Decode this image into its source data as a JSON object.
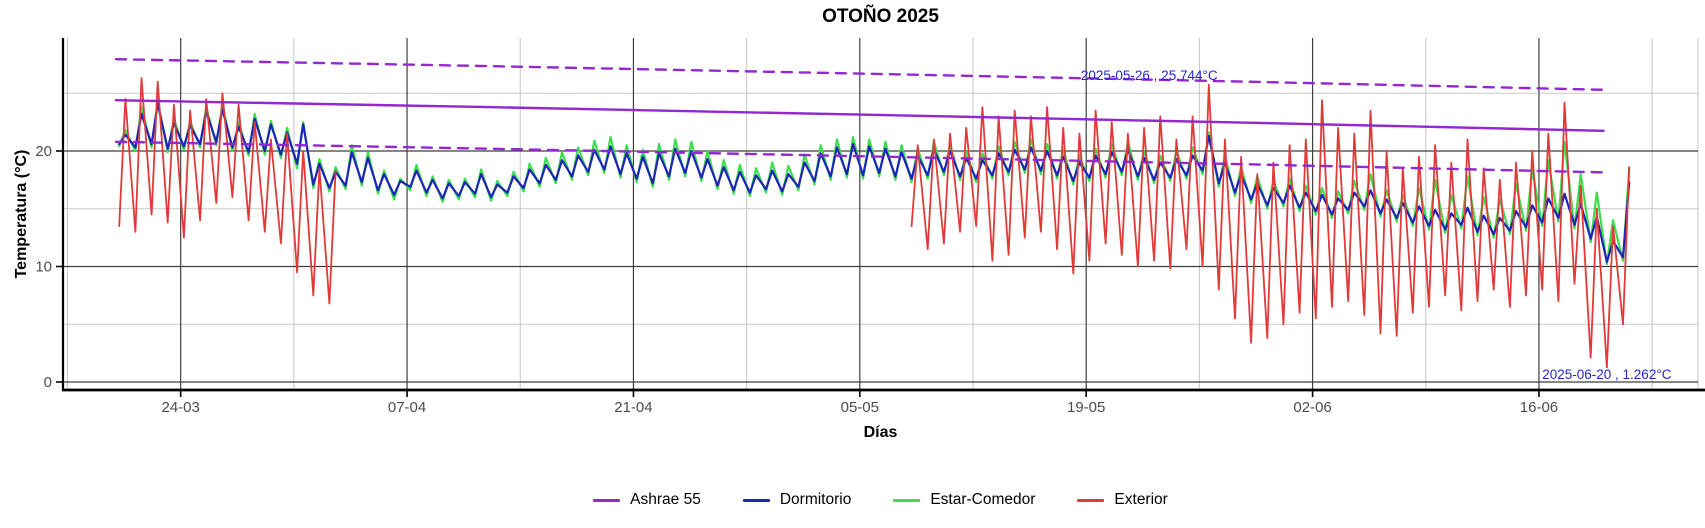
{
  "chart_data": {
    "type": "line",
    "title": "OTOÑO 2025",
    "xlabel": "Días",
    "ylabel": "Temperatura (°C)",
    "x_start_date": "2025-03-20",
    "x_tick_labels": [
      {
        "day": 4,
        "label": "24-03"
      },
      {
        "day": 18,
        "label": "07-04"
      },
      {
        "day": 32,
        "label": "21-04"
      },
      {
        "day": 46,
        "label": "05-05"
      },
      {
        "day": 60,
        "label": "19-05"
      },
      {
        "day": 74,
        "label": "02-06"
      },
      {
        "day": 88,
        "label": "16-06"
      }
    ],
    "x_minor_days": [
      -3,
      11,
      25,
      39,
      53,
      67,
      81,
      95
    ],
    "y_ticks": [
      {
        "value": 0,
        "label": "0"
      },
      {
        "value": 10,
        "label": "10"
      },
      {
        "value": 20,
        "label": "20"
      }
    ],
    "y_minor": [
      5,
      15,
      25
    ],
    "ylim": [
      -0.7,
      29.8
    ],
    "grid": true,
    "legend_position": "bottom",
    "colors": {
      "ashrae": "#9327d0",
      "dormitorio": "#1f23b8",
      "estar_comedor": "#3bdf4e",
      "exterior": "#e23939",
      "annotation": "#2626cc",
      "grid_major": "#3f3f3f",
      "grid_minor": "#c9c9c9",
      "axis": "#000000",
      "tick_text": "#4d4d4d"
    },
    "series": [
      {
        "key": "estar-comedor",
        "name": "Estar-Comedor",
        "color_ref": "estar_comedor",
        "line_style": "solid",
        "width": 2.2,
        "data_kind": "daily_min_max",
        "daily_min_max": [
          [
            20.4,
            21.8
          ],
          [
            20.0,
            23.8
          ],
          [
            20.3,
            24.3
          ],
          [
            19.9,
            22.8
          ],
          [
            20.1,
            22.6
          ],
          [
            20.3,
            23.8
          ],
          [
            20.5,
            24.0
          ],
          [
            20.0,
            22.5
          ],
          [
            19.6,
            23.2
          ],
          [
            19.7,
            22.6
          ],
          [
            19.4,
            22.0
          ],
          [
            18.5,
            22.5
          ],
          [
            16.8,
            19.3
          ],
          [
            16.5,
            18.6
          ],
          [
            16.7,
            20.5
          ],
          [
            17.0,
            19.9
          ],
          [
            16.3,
            18.3
          ],
          [
            15.8,
            17.6
          ],
          [
            16.6,
            18.8
          ],
          [
            16.1,
            17.8
          ],
          [
            15.6,
            17.5
          ],
          [
            15.8,
            17.6
          ],
          [
            16.0,
            18.4
          ],
          [
            15.7,
            17.4
          ],
          [
            16.1,
            18.2
          ],
          [
            16.5,
            18.9
          ],
          [
            16.9,
            19.4
          ],
          [
            17.2,
            19.9
          ],
          [
            17.5,
            20.3
          ],
          [
            17.9,
            20.9
          ],
          [
            18.1,
            21.2
          ],
          [
            17.7,
            20.5
          ],
          [
            17.3,
            20.1
          ],
          [
            16.9,
            20.6
          ],
          [
            17.5,
            21.0
          ],
          [
            17.8,
            20.8
          ],
          [
            17.4,
            20.0
          ],
          [
            16.7,
            19.2
          ],
          [
            16.3,
            18.8
          ],
          [
            16.1,
            18.5
          ],
          [
            16.4,
            19.0
          ],
          [
            16.2,
            18.7
          ],
          [
            16.6,
            19.7
          ],
          [
            17.1,
            20.5
          ],
          [
            17.5,
            21.0
          ],
          [
            17.7,
            21.2
          ],
          [
            17.6,
            21.0
          ],
          [
            17.8,
            20.8
          ],
          [
            17.5,
            20.5
          ],
          [
            17.3,
            20.2
          ],
          [
            17.6,
            20.8
          ],
          [
            17.9,
            20.6
          ],
          [
            17.5,
            20.0
          ],
          [
            17.3,
            19.8
          ],
          [
            17.6,
            20.4
          ],
          [
            17.9,
            20.8
          ],
          [
            18.1,
            21.0
          ],
          [
            18.0,
            20.6
          ],
          [
            17.6,
            20.1
          ],
          [
            17.1,
            19.6
          ],
          [
            17.4,
            20.2
          ],
          [
            17.7,
            20.6
          ],
          [
            17.9,
            20.8
          ],
          [
            17.5,
            20.0
          ],
          [
            17.2,
            19.6
          ],
          [
            17.4,
            20.0
          ],
          [
            17.6,
            20.3
          ],
          [
            18.0,
            21.6
          ],
          [
            16.9,
            19.6
          ],
          [
            16.1,
            18.6
          ],
          [
            15.5,
            17.8
          ],
          [
            15.0,
            17.4
          ],
          [
            15.2,
            17.6
          ],
          [
            14.8,
            17.0
          ],
          [
            14.5,
            16.8
          ],
          [
            14.2,
            16.5
          ],
          [
            14.6,
            17.4
          ],
          [
            14.9,
            18.0
          ],
          [
            14.3,
            16.6
          ],
          [
            13.9,
            16.2
          ],
          [
            13.5,
            16.8
          ],
          [
            13.2,
            17.5
          ],
          [
            12.9,
            16.2
          ],
          [
            13.3,
            17.8
          ],
          [
            12.7,
            16.0
          ],
          [
            12.5,
            15.8
          ],
          [
            12.8,
            17.2
          ],
          [
            13.1,
            18.4
          ],
          [
            13.5,
            19.2
          ],
          [
            13.9,
            20.8
          ],
          [
            13.3,
            18.0
          ],
          [
            12.1,
            16.4
          ],
          [
            10.2,
            14.0
          ],
          [
            10.5,
            18.5
          ]
        ]
      },
      {
        "key": "dormitorio",
        "name": "Dormitorio",
        "color_ref": "dormitorio",
        "line_style": "solid",
        "width": 2.2,
        "data_kind": "daily_min_max",
        "daily_min_max": [
          [
            20.6,
            21.4
          ],
          [
            20.3,
            23.2
          ],
          [
            20.6,
            24.1
          ],
          [
            20.2,
            22.4
          ],
          [
            20.4,
            22.2
          ],
          [
            20.6,
            23.4
          ],
          [
            20.8,
            23.6
          ],
          [
            20.3,
            22.1
          ],
          [
            19.9,
            22.8
          ],
          [
            20.0,
            22.3
          ],
          [
            19.7,
            21.6
          ],
          [
            18.9,
            22.3
          ],
          [
            17.1,
            18.9
          ],
          [
            16.8,
            18.2
          ],
          [
            17.0,
            19.9
          ],
          [
            17.3,
            19.4
          ],
          [
            16.6,
            18.0
          ],
          [
            16.2,
            17.4
          ],
          [
            16.9,
            18.3
          ],
          [
            16.4,
            17.5
          ],
          [
            15.9,
            17.2
          ],
          [
            16.1,
            17.3
          ],
          [
            16.3,
            18.0
          ],
          [
            16.0,
            17.1
          ],
          [
            16.4,
            17.8
          ],
          [
            16.8,
            18.4
          ],
          [
            17.2,
            18.8
          ],
          [
            17.5,
            19.2
          ],
          [
            17.8,
            19.6
          ],
          [
            18.2,
            20.1
          ],
          [
            18.4,
            20.4
          ],
          [
            18.0,
            19.8
          ],
          [
            17.6,
            19.5
          ],
          [
            17.2,
            19.8
          ],
          [
            17.8,
            20.2
          ],
          [
            18.1,
            20.0
          ],
          [
            17.7,
            19.3
          ],
          [
            17.0,
            18.6
          ],
          [
            16.6,
            18.2
          ],
          [
            16.4,
            17.9
          ],
          [
            16.7,
            18.3
          ],
          [
            16.5,
            18.0
          ],
          [
            16.9,
            19.0
          ],
          [
            17.4,
            19.8
          ],
          [
            17.8,
            20.3
          ],
          [
            18.0,
            20.6
          ],
          [
            17.9,
            20.4
          ],
          [
            18.1,
            20.2
          ],
          [
            17.8,
            19.9
          ],
          [
            17.6,
            19.6
          ],
          [
            17.9,
            20.1
          ],
          [
            18.2,
            20.0
          ],
          [
            17.8,
            19.4
          ],
          [
            17.6,
            19.2
          ],
          [
            17.9,
            19.8
          ],
          [
            18.2,
            20.1
          ],
          [
            18.4,
            20.3
          ],
          [
            18.3,
            20.0
          ],
          [
            17.9,
            19.5
          ],
          [
            17.4,
            19.0
          ],
          [
            17.7,
            19.6
          ],
          [
            18.0,
            19.9
          ],
          [
            18.2,
            20.1
          ],
          [
            17.8,
            19.4
          ],
          [
            17.5,
            19.0
          ],
          [
            17.7,
            19.3
          ],
          [
            17.9,
            19.6
          ],
          [
            18.3,
            21.3
          ],
          [
            17.2,
            19.0
          ],
          [
            16.4,
            18.0
          ],
          [
            15.8,
            17.2
          ],
          [
            15.3,
            16.8
          ],
          [
            15.5,
            17.0
          ],
          [
            15.1,
            16.4
          ],
          [
            14.8,
            16.2
          ],
          [
            14.5,
            15.9
          ],
          [
            14.9,
            16.4
          ],
          [
            15.2,
            16.6
          ],
          [
            14.6,
            15.8
          ],
          [
            14.2,
            15.5
          ],
          [
            13.8,
            15.2
          ],
          [
            13.5,
            14.9
          ],
          [
            13.2,
            14.6
          ],
          [
            13.6,
            15.1
          ],
          [
            13.0,
            14.4
          ],
          [
            12.8,
            14.2
          ],
          [
            13.1,
            14.8
          ],
          [
            13.4,
            15.3
          ],
          [
            13.8,
            15.9
          ],
          [
            14.2,
            16.3
          ],
          [
            13.6,
            15.4
          ],
          [
            12.4,
            14.3
          ],
          [
            10.4,
            12.2
          ],
          [
            10.8,
            17.3
          ]
        ]
      },
      {
        "key": "exterior",
        "name": "Exterior",
        "color_ref": "exterior",
        "line_style": "solid",
        "width": 1.8,
        "data_kind": "daily_min_max",
        "daily_min_max": [
          [
            13.5,
            24.5
          ],
          [
            13.0,
            26.3
          ],
          [
            14.5,
            26.0
          ],
          [
            13.8,
            24.0
          ],
          [
            12.5,
            23.5
          ],
          [
            14.0,
            24.5
          ],
          [
            15.5,
            25.0
          ],
          [
            16.0,
            24.0
          ],
          [
            14.0,
            22.5
          ],
          [
            13.0,
            21.0
          ],
          [
            12.0,
            21.5
          ],
          [
            9.5,
            20.0
          ],
          [
            7.5,
            18.5
          ],
          [
            6.8,
            18.3
          ],
          null,
          null,
          null,
          null,
          null,
          null,
          null,
          null,
          null,
          null,
          null,
          null,
          null,
          null,
          null,
          null,
          null,
          null,
          null,
          null,
          null,
          null,
          null,
          null,
          null,
          null,
          null,
          null,
          null,
          null,
          null,
          null,
          null,
          null,
          null,
          [
            13.5,
            20.5
          ],
          [
            11.5,
            21.0
          ],
          [
            12.0,
            21.5
          ],
          [
            13.0,
            22.0
          ],
          [
            13.5,
            23.8
          ],
          [
            10.5,
            23.0
          ],
          [
            11.0,
            23.5
          ],
          [
            12.5,
            23.0
          ],
          [
            13.0,
            23.8
          ],
          [
            11.5,
            22.0
          ],
          [
            9.4,
            21.5
          ],
          [
            10.5,
            23.5
          ],
          [
            12.0,
            22.5
          ],
          [
            11.0,
            21.5
          ],
          [
            10.0,
            22.0
          ],
          [
            10.5,
            23.0
          ],
          [
            9.8,
            21.0
          ],
          [
            11.5,
            23.0
          ],
          [
            10.0,
            25.744
          ],
          [
            8.0,
            21.0
          ],
          [
            5.5,
            19.5
          ],
          [
            3.4,
            18.0
          ],
          [
            3.8,
            19.0
          ],
          [
            5.0,
            20.5
          ],
          [
            6.0,
            21.0
          ],
          [
            5.5,
            24.4
          ],
          [
            6.5,
            22.0
          ],
          [
            7.0,
            21.5
          ],
          [
            5.8,
            23.5
          ],
          [
            4.2,
            20.0
          ],
          [
            4.0,
            18.5
          ],
          [
            6.0,
            19.5
          ],
          [
            6.5,
            20.5
          ],
          [
            7.5,
            19.0
          ],
          [
            6.2,
            21.0
          ],
          [
            7.0,
            18.5
          ],
          [
            8.0,
            17.5
          ],
          [
            6.5,
            19.0
          ],
          [
            7.5,
            20.0
          ],
          [
            8.0,
            21.5
          ],
          [
            7.0,
            24.2
          ],
          [
            8.5,
            17.0
          ],
          [
            2.1,
            15.0
          ],
          [
            1.262,
            13.5
          ],
          [
            5.0,
            18.6
          ]
        ]
      },
      {
        "key": "ashrae-comfort",
        "name": "Ashrae 55",
        "color_ref": "ashrae",
        "line_style": "solid",
        "width": 2.4,
        "data_kind": "waypoints",
        "points": [
          [
            0,
            24.4
          ],
          [
            23,
            23.8
          ],
          [
            46,
            23.15
          ],
          [
            70,
            22.45
          ],
          [
            92,
            21.75
          ]
        ]
      },
      {
        "key": "ashrae-upper",
        "name": "Ashrae 55",
        "color_ref": "ashrae",
        "line_style": "dashed",
        "width": 2.4,
        "data_kind": "waypoints",
        "points": [
          [
            0,
            27.95
          ],
          [
            23,
            27.35
          ],
          [
            46,
            26.7
          ],
          [
            70,
            26.0
          ],
          [
            92,
            25.3
          ]
        ]
      },
      {
        "key": "ashrae-lower",
        "name": "Ashrae 55",
        "color_ref": "ashrae",
        "line_style": "dashed",
        "width": 2.4,
        "data_kind": "waypoints",
        "points": [
          [
            0,
            20.8
          ],
          [
            23,
            20.2
          ],
          [
            46,
            19.55
          ],
          [
            70,
            18.85
          ],
          [
            92,
            18.15
          ]
        ]
      }
    ],
    "annotations": [
      {
        "text": "2025-05-26 , 25.744°C",
        "day": 63.9,
        "temp": 26.6
      },
      {
        "text": "2025-06-20 , 1.262°C",
        "day": 92.2,
        "temp": 0.7
      }
    ],
    "legend": [
      {
        "label": "Ashrae 55",
        "color_ref": "ashrae"
      },
      {
        "label": "Dormitorio",
        "color_ref": "dormitorio"
      },
      {
        "label": "Estar-Comedor",
        "color_ref": "estar_comedor"
      },
      {
        "label": "Exterior",
        "color_ref": "exterior"
      }
    ]
  }
}
